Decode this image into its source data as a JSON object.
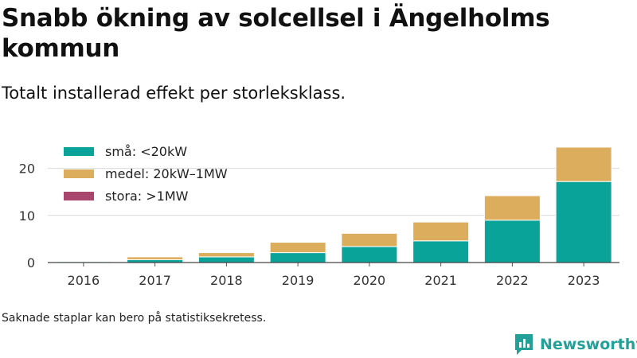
{
  "title": "Snabb ökning av solcellsel i Ängelholms kommun",
  "subtitle": "Totalt installerad effekt per storleksklass.",
  "footnote": "Saknade staplar kan bero på statistiksekretess.",
  "brand": {
    "name": "Newsworthy",
    "icon": "newsworthy-logo-icon",
    "color": "#23a198"
  },
  "chart_data": {
    "type": "bar",
    "stacked": true,
    "categories": [
      "2016",
      "2017",
      "2018",
      "2019",
      "2020",
      "2021",
      "2022",
      "2023"
    ],
    "series": [
      {
        "name": "små: <20kW",
        "color": "#0aa39a",
        "values": [
          0.2,
          0.6,
          1.2,
          2.1,
          3.4,
          4.6,
          9.0,
          17.2
        ]
      },
      {
        "name": "medel: 20kW–1MW",
        "color": "#dbad5c",
        "values": [
          0.1,
          0.6,
          0.9,
          2.2,
          2.8,
          4.0,
          5.2,
          7.3
        ]
      },
      {
        "name": "stora: >1MW",
        "color": "#a8466e",
        "values": [
          0,
          0,
          0,
          0,
          0,
          0,
          0,
          0
        ]
      }
    ],
    "ylim": [
      0,
      25
    ],
    "yticks": [
      "0",
      "10",
      "20"
    ],
    "ytick_values": [
      0,
      10,
      20
    ],
    "grid": true,
    "legend": "top-left",
    "xlabel": "",
    "ylabel": ""
  }
}
